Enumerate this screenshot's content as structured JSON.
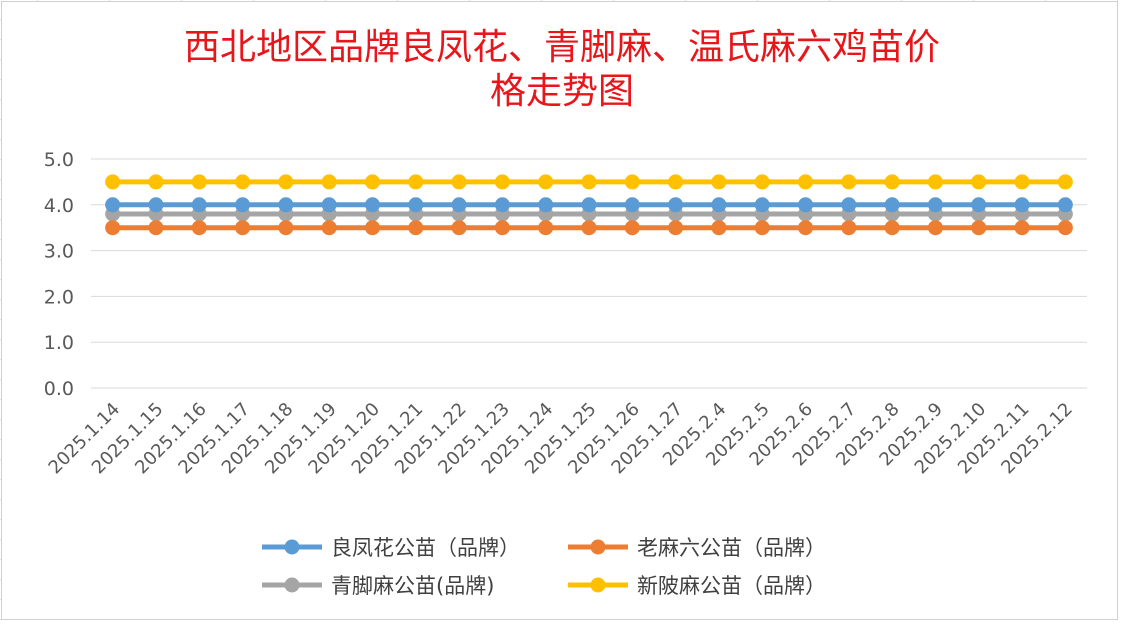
{
  "chart_data": {
    "type": "line",
    "title": "西北地区品牌良凤花、青脚麻、温氏麻六鸡苗价格走势图",
    "title_lines": [
      "西北地区品牌良凤花、青脚麻、温氏麻六鸡苗价",
      "格走势图"
    ],
    "xlabel": "",
    "ylabel": "",
    "ylim": [
      0,
      5
    ],
    "yticks": [
      "0.0",
      "1.0",
      "2.0",
      "3.0",
      "4.0",
      "5.0"
    ],
    "grid": true,
    "legend_position": "bottom",
    "categories": [
      "2025.1.14",
      "2025.1.15",
      "2025.1.16",
      "2025.1.17",
      "2025.1.18",
      "2025.1.19",
      "2025.1.20",
      "2025.1.21",
      "2025.1.22",
      "2025.1.23",
      "2025.1.24",
      "2025.1.25",
      "2025.1.26",
      "2025.1.27",
      "2025.2.4",
      "2025.2.5",
      "2025.2.6",
      "2025.2.7",
      "2025.2.8",
      "2025.2.9",
      "2025.2.10",
      "2025.2.11",
      "2025.2.12"
    ],
    "series": [
      {
        "name": "良凤花公苗（品牌）",
        "color": "#5b9bd5",
        "values": [
          4.0,
          4.0,
          4.0,
          4.0,
          4.0,
          4.0,
          4.0,
          4.0,
          4.0,
          4.0,
          4.0,
          4.0,
          4.0,
          4.0,
          4.0,
          4.0,
          4.0,
          4.0,
          4.0,
          4.0,
          4.0,
          4.0,
          4.0
        ]
      },
      {
        "name": "老麻六公苗（品牌）",
        "color": "#ed7d31",
        "values": [
          3.5,
          3.5,
          3.5,
          3.5,
          3.5,
          3.5,
          3.5,
          3.5,
          3.5,
          3.5,
          3.5,
          3.5,
          3.5,
          3.5,
          3.5,
          3.5,
          3.5,
          3.5,
          3.5,
          3.5,
          3.5,
          3.5,
          3.5
        ]
      },
      {
        "name": "青脚麻公苗(品牌)",
        "color": "#a5a5a5",
        "values": [
          3.8,
          3.8,
          3.8,
          3.8,
          3.8,
          3.8,
          3.8,
          3.8,
          3.8,
          3.8,
          3.8,
          3.8,
          3.8,
          3.8,
          3.8,
          3.8,
          3.8,
          3.8,
          3.8,
          3.8,
          3.8,
          3.8,
          3.8
        ]
      },
      {
        "name": "新陂麻公苗（品牌）",
        "color": "#ffc000",
        "values": [
          4.5,
          4.5,
          4.5,
          4.5,
          4.5,
          4.5,
          4.5,
          4.5,
          4.5,
          4.5,
          4.5,
          4.5,
          4.5,
          4.5,
          4.5,
          4.5,
          4.5,
          4.5,
          4.5,
          4.5,
          4.5,
          4.5,
          4.5
        ]
      }
    ],
    "draw_order": [
      2,
      0,
      1,
      3
    ],
    "legend_order": [
      0,
      1,
      2,
      3
    ]
  }
}
